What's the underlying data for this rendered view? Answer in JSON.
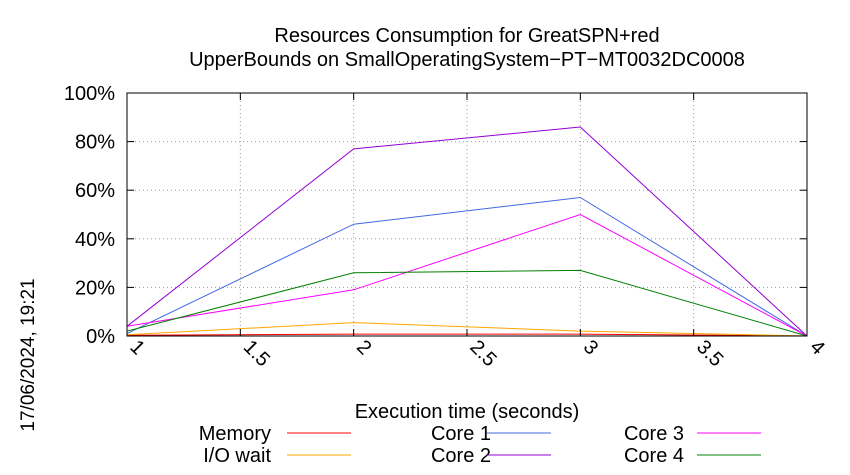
{
  "chart_data": {
    "type": "line",
    "title_line1": "Resources Consumption for GreatSPN+red",
    "title_line2": "UpperBounds on SmallOperatingSystem−PT−MT0032DC0008",
    "xlabel": "Execution time (seconds)",
    "ylabel": "",
    "timestamp": "17/06/2024, 19:21",
    "xlim": [
      1,
      4
    ],
    "ylim": [
      0,
      100
    ],
    "x_ticks": [
      "1",
      "1.5",
      "2",
      "2.5",
      "3",
      "3.5",
      "4"
    ],
    "x_tick_values": [
      1,
      1.5,
      2,
      2.5,
      3,
      3.5,
      4
    ],
    "y_ticks": [
      "0%",
      "20%",
      "40%",
      "60%",
      "80%",
      "100%"
    ],
    "y_tick_values": [
      0,
      20,
      40,
      60,
      80,
      100
    ],
    "grid": true,
    "legend_position": "bottom",
    "x": [
      1,
      2,
      3,
      4
    ],
    "series": [
      {
        "name": "Memory",
        "color": "#ff0000",
        "values": [
          0.3,
          0.8,
          0.8,
          0
        ]
      },
      {
        "name": "I/O wait",
        "color": "#ffa500",
        "values": [
          0.5,
          5.5,
          2,
          0
        ]
      },
      {
        "name": "Core 1",
        "color": "#4169e1",
        "values": [
          1,
          46,
          57,
          0
        ]
      },
      {
        "name": "Core 2",
        "color": "#9400d3",
        "values": [
          4,
          77,
          86,
          0
        ]
      },
      {
        "name": "Core 3",
        "color": "#ff00ff",
        "values": [
          4,
          19,
          50,
          0
        ]
      },
      {
        "name": "Core 4",
        "color": "#008000",
        "values": [
          2,
          26,
          27,
          0
        ]
      }
    ]
  }
}
